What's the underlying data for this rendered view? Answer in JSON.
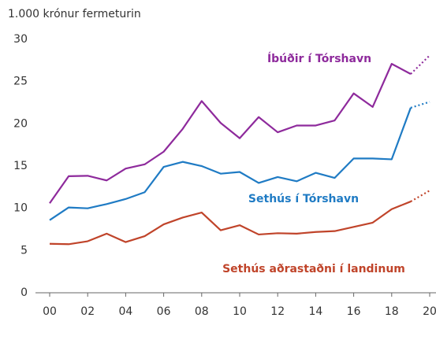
{
  "chart_data": {
    "type": "line",
    "ylabel": "1.000 krónur fermeturin",
    "x": [
      2000,
      2001,
      2002,
      2003,
      2004,
      2005,
      2006,
      2007,
      2008,
      2009,
      2010,
      2011,
      2012,
      2013,
      2014,
      2015,
      2016,
      2017,
      2018,
      2019,
      2020
    ],
    "xlim": [
      1999.5,
      2020.4
    ],
    "xticks": [
      {
        "value": 2000,
        "label": "00"
      },
      {
        "value": 2002,
        "label": "02"
      },
      {
        "value": 2004,
        "label": "04"
      },
      {
        "value": 2006,
        "label": "06"
      },
      {
        "value": 2008,
        "label": "08"
      },
      {
        "value": 2010,
        "label": "10"
      },
      {
        "value": 2012,
        "label": "12"
      },
      {
        "value": 2014,
        "label": "14"
      },
      {
        "value": 2016,
        "label": "16"
      },
      {
        "value": 2018,
        "label": "18"
      },
      {
        "value": 2020,
        "label": "20"
      }
    ],
    "ylim": [
      0,
      30
    ],
    "yticks": [
      0,
      5,
      10,
      15,
      20,
      25,
      30
    ],
    "grid": false,
    "projection_from": 2019,
    "series": [
      {
        "name": "Íbúðir í Tórshavn",
        "color": "#8e2a9c",
        "values": [
          10.6,
          13.8,
          13.85,
          13.3,
          14.7,
          15.2,
          16.7,
          19.4,
          22.7,
          20.1,
          18.3,
          20.8,
          19.0,
          19.8,
          19.8,
          20.4,
          23.6,
          22.0,
          27.1,
          25.9,
          28.1
        ]
      },
      {
        "name": "Sethús í Tórshavn",
        "color": "#1f7bc4",
        "values": [
          8.6,
          10.1,
          10.0,
          10.5,
          11.1,
          11.9,
          14.9,
          15.5,
          15.0,
          14.1,
          14.3,
          13.0,
          13.7,
          13.2,
          14.2,
          13.6,
          15.9,
          15.9,
          15.8,
          21.9,
          22.6
        ]
      },
      {
        "name": "Sethús aðrastaðni í landinum",
        "color": "#c0442a",
        "values": [
          5.8,
          5.75,
          6.1,
          7.0,
          6.0,
          6.7,
          8.1,
          8.9,
          9.5,
          7.4,
          8.0,
          6.9,
          7.05,
          7.0,
          7.2,
          7.3,
          7.8,
          8.3,
          9.9,
          10.8,
          12.1
        ]
      }
    ]
  }
}
